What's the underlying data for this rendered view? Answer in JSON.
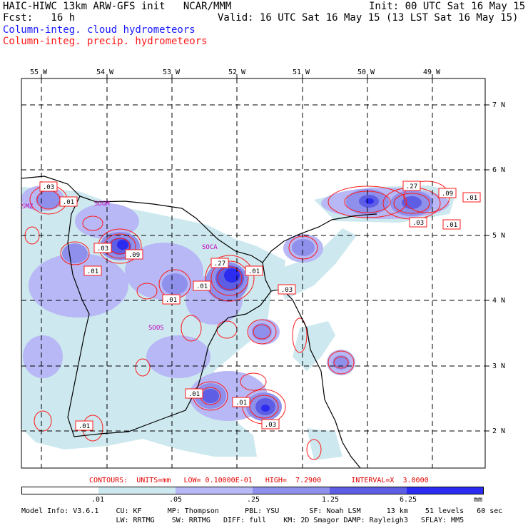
{
  "header": {
    "line1_left": "HAIC-HIWC 13km ARW-GFS init   NCAR/MMM",
    "line1_right": "Init: 00 UTC Sat 16 May 15",
    "line2_left": "Fcst:   16 h",
    "line2_right": "Valid: 16 UTC Sat 16 May 15 (13 LST Sat 16 May 15)",
    "line3": "Column-integ. cloud hydrometeors",
    "line4": "Column-integ. precip. hydrometeors"
  },
  "map": {
    "lon_labels": [
      "55 W",
      "54 W",
      "53 W",
      "52 W",
      "51 W",
      "50 W",
      "49 W"
    ],
    "lat_labels": [
      "7 N",
      "6 N",
      "5 N",
      "4 N",
      "3 N",
      "2 N"
    ],
    "stations": [
      "SMZ",
      "SOGM",
      "SOCA",
      "SOOS"
    ],
    "contour_labels": [
      ".03",
      ".01",
      ".03",
      ".09",
      ".01",
      ".01",
      ".27",
      ".01",
      ".01",
      ".03",
      ".01",
      ".01",
      ".03",
      ".01",
      ".27",
      ".09",
      ".01",
      ".03",
      ".01"
    ],
    "colors": {
      "pale": "#cde9ef",
      "light": "#b7b8f5",
      "mid": "#8f90ec",
      "strong": "#5d5ee3",
      "deep": "#2c2cf0",
      "contour": "#ff1a1a",
      "border": "#000000"
    }
  },
  "contours_line": "CONTOURS:  UNITS=mm   LOW= 0.10000E-01   HIGH=  7.2900       INTERVAL=X  3.0000",
  "colorbar": {
    "labels": [
      ".01",
      ".05",
      ".25",
      "1.25",
      "6.25"
    ],
    "unit": "mm",
    "colors": [
      "#ffffff",
      "#cde9ef",
      "#b7b8f5",
      "#8f90ec",
      "#5d5ee3",
      "#2c2cf0"
    ]
  },
  "model_info": {
    "line1": "Model Info: V3.6.1    CU: KF      MP: Thompson      PBL: YSU       SF: Noah LSM      13 km    51 levels   60 sec",
    "line2": "                      LW: RRTMG    SW: RRTMG   DIFF: full    KM: 2D Smagor DAMP: Rayleigh3   SFLAY: MM5"
  }
}
